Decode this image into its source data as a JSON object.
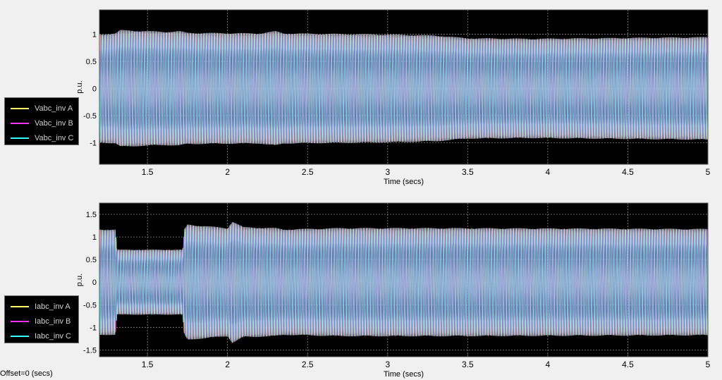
{
  "status": {
    "offset_text": "Offset=0 (secs)"
  },
  "chart_data": [
    {
      "type": "line",
      "title": "",
      "xlabel": "Time (secs)",
      "ylabel": "p.u.",
      "xlim": [
        1.2,
        5
      ],
      "ylim": [
        -1.4,
        1.45
      ],
      "xticks": [
        1.5,
        2,
        2.5,
        3,
        3.5,
        4,
        4.5,
        5
      ],
      "yticks": [
        -1,
        -0.5,
        0,
        0.5,
        1
      ],
      "ytick_labels": [
        "-1",
        "-0.5",
        "0",
        "0.5",
        "1"
      ],
      "grid": true,
      "legend": "left",
      "background": "#000000",
      "series": [
        {
          "name": "Vabc_inv A",
          "color": "#ffff66",
          "phase_deg": 0
        },
        {
          "name": "Vabc_inv B",
          "color": "#ff33ff",
          "phase_deg": -120
        },
        {
          "name": "Vabc_inv C",
          "color": "#33ffff",
          "phase_deg": 120
        }
      ],
      "amplitude_envelope": {
        "t": [
          1.2,
          1.3,
          1.33,
          1.6,
          1.7,
          1.75,
          2.2,
          2.3,
          2.35,
          3.0,
          3.3,
          3.5,
          3.9,
          5.0
        ],
        "amp": [
          1.0,
          1.02,
          1.08,
          1.05,
          1.06,
          1.03,
          1.02,
          1.06,
          1.02,
          1.0,
          0.98,
          0.93,
          0.92,
          0.95
        ]
      }
    },
    {
      "type": "line",
      "title": "",
      "xlabel": "Time (secs)",
      "ylabel": "p.u.",
      "xlim": [
        1.2,
        5
      ],
      "ylim": [
        -1.65,
        1.75
      ],
      "xticks": [
        1.5,
        2,
        2.5,
        3,
        3.5,
        4,
        4.5,
        5
      ],
      "yticks": [
        -1.5,
        -1,
        -0.5,
        0,
        0.5,
        1,
        1.5
      ],
      "ytick_labels": [
        "-1.5",
        "-1",
        "-0.5",
        "0",
        "0.5",
        "1",
        "1.5"
      ],
      "grid": true,
      "legend": "left",
      "background": "#000000",
      "series": [
        {
          "name": "Iabc_inv A",
          "color": "#ffff66",
          "phase_deg": 0
        },
        {
          "name": "Iabc_inv B",
          "color": "#ff33ff",
          "phase_deg": -120
        },
        {
          "name": "Iabc_inv C",
          "color": "#33ffff",
          "phase_deg": 120
        }
      ],
      "amplitude_envelope": {
        "t": [
          1.2,
          1.3,
          1.31,
          1.72,
          1.73,
          1.75,
          2.0,
          2.03,
          2.1,
          2.3,
          2.35,
          2.7,
          3.35,
          5.0
        ],
        "amp": [
          1.17,
          1.17,
          0.72,
          0.72,
          1.17,
          1.28,
          1.2,
          1.35,
          1.22,
          1.2,
          1.17,
          1.2,
          1.2,
          1.18
        ]
      }
    }
  ]
}
